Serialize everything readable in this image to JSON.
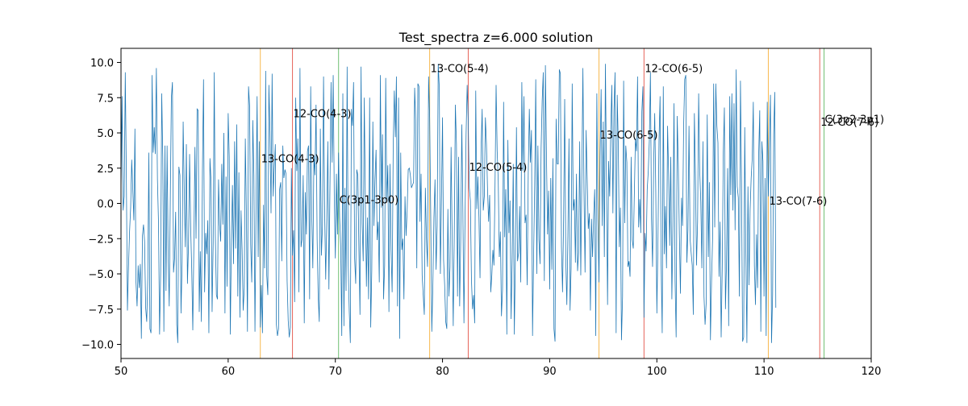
{
  "chart_data": {
    "type": "line",
    "title": "Test_spectra z=6.000 solution",
    "xlabel": "",
    "ylabel": "",
    "xlim": [
      50,
      120
    ],
    "ylim": [
      -11,
      11
    ],
    "x_ticks": [
      50,
      60,
      70,
      80,
      90,
      100,
      110,
      120
    ],
    "x_tick_labels": [
      "50",
      "60",
      "70",
      "80",
      "90",
      "100",
      "110",
      "120"
    ],
    "y_ticks": [
      -10,
      -7.5,
      -5,
      -2.5,
      0,
      2.5,
      5,
      7.5,
      10
    ],
    "y_tick_labels": [
      "−10.0",
      "−7.5",
      "−5.0",
      "−2.5",
      "0.0",
      "2.5",
      "5.0",
      "7.5",
      "10.0"
    ],
    "grid": false,
    "series": [
      {
        "color": "#1f77b4",
        "description_note": "random noise spectrum, approx. 0.1 x-units sampling",
        "x_start": 50.0,
        "x_step": 0.1,
        "values": [
          0.8,
          7.6,
          -0.5,
          0.5,
          9.3,
          1.8,
          -7.6,
          -4.5,
          -2.0,
          -0.3,
          3.1,
          1.0,
          -1.2,
          5.3,
          -5.6,
          -7.3,
          -4.4,
          -6.0,
          -4.3,
          -9.6,
          -2.3,
          -1.5,
          -2.7,
          -7.4,
          -8.4,
          -5.3,
          3.6,
          -8.9,
          -9.2,
          9.1,
          3.6,
          5.4,
          3.5,
          9.6,
          1.7,
          -1.4,
          -9.3,
          -4.9,
          7.8,
          3.3,
          -9.1,
          4.1,
          -6.2,
          4.1,
          -3.7,
          -7.3,
          0.3,
          7.5,
          8.6,
          -4.9,
          -3.9,
          -0.6,
          -8.6,
          -9.9,
          2.6,
          2.0,
          -7.8,
          -4.2,
          5.8,
          1.0,
          -3.1,
          4.2,
          -5.7,
          -2.9,
          3.5,
          -1.7,
          -4.7,
          -9.0,
          -2.9,
          4.0,
          -2.5,
          6.7,
          6.6,
          -7.7,
          -3.4,
          -8.4,
          2.3,
          8.8,
          -6.3,
          -2.1,
          -3.6,
          -1.2,
          -9.2,
          3.2,
          1.6,
          -7.7,
          -2.8,
          9.3,
          -2.2,
          -6.5,
          -6.8,
          1.7,
          -1.5,
          -2.7,
          2.8,
          -1.5,
          5.0,
          -7.8,
          1.9,
          -5.9,
          6.4,
          3.3,
          -9.3,
          -2.7,
          1.3,
          -4.3,
          4.4,
          -3.2,
          5.6,
          -6.6,
          2.2,
          -8.1,
          -0.5,
          -3.3,
          -7.6,
          -6.0,
          4.6,
          -0.7,
          -9.1,
          8.3,
          6.9,
          -2.9,
          -5.6,
          5.9,
          2.0,
          -9.1,
          -0.3,
          7.6,
          -3.8,
          4.4,
          -8.8,
          -5.8,
          -9.2,
          -0.1,
          -4.6,
          9.4,
          -5.1,
          -6.5,
          8.4,
          5.1,
          -0.7,
          9.2,
          0.5,
          2.6,
          4.2,
          -8.6,
          -9.4,
          -8.9,
          1.0,
          1.5,
          -4.1,
          4.1,
          1.8,
          2.4,
          2.1,
          -5.5,
          -8.3,
          -9.5,
          -8.8,
          2.5,
          -3.7,
          -1.9,
          -7.0,
          7.5,
          2.3,
          4.6,
          -6.3,
          9.6,
          -3.1,
          -2.5,
          2.0,
          -8.5,
          0.8,
          -2.2,
          3.7,
          4.1,
          -6.8,
          8.3,
          -0.9,
          -4.6,
          3.4,
          2.0,
          7.0,
          -2.5,
          -6.6,
          -8.4,
          5.3,
          -3.7,
          -1.6,
          9.0,
          -0.6,
          -5.4,
          -1.1,
          4.4,
          -6.1,
          1.4,
          8.6,
          2.9,
          9.1,
          0.5,
          -3.9,
          2.1,
          -2.2,
          3.6,
          -1.0,
          -3.0,
          -9.4,
          7.8,
          -8.7,
          1.1,
          -6.2,
          9.7,
          -4.4,
          -7.7,
          -9.9,
          6.7,
          5.5,
          8.6,
          -3.9,
          -5.7,
          2.4,
          2.0,
          -3.3,
          -7.9,
          9.7,
          -1.4,
          -4.1,
          7.5,
          0.2,
          -5.9,
          -1.0,
          -6.8,
          7.5,
          -8.8,
          -4.7,
          5.8,
          -1.6,
          1.7,
          3.8,
          -2.6,
          -1.3,
          -5.6,
          9.1,
          -0.3,
          4.9,
          -6.8,
          -4.4,
          8.9,
          0.3,
          2.7,
          -7.7,
          2.8,
          -3.3,
          -6.3,
          4.1,
          8.0,
          4.7,
          9.0,
          -7.3,
          7.5,
          -9.6,
          3.6,
          -3.3,
          -2.5,
          -6.8,
          0.5,
          -2.3,
          -0.5,
          2.4,
          2.5,
          2.0,
          1.1,
          1.3,
          1.5,
          8.2,
          5.9,
          -4.6,
          8.5,
          8.3,
          -1.3,
          2.1,
          -5.1,
          -6.5,
          -7.9,
          1.1,
          -2.5,
          -4.5,
          9.0,
          6.1,
          -0.8,
          -9.1,
          -5.8,
          -1.0,
          1.7,
          -4.7,
          -1.6,
          9.9,
          8.2,
          -5.0,
          0.1,
          6.1,
          -4.0,
          -5.8,
          -8.4,
          -8.9,
          -0.4,
          -6.6,
          -4.5,
          4.0,
          -2.5,
          -8.7,
          -1.9,
          7.0,
          4.2,
          -6.6,
          3.3,
          -7.3,
          -2.5,
          5.6,
          -0.6,
          -8.5,
          -1.1,
          4.9,
          8.4,
          5.9,
          1.1,
          0.2,
          -5.4,
          -7.5,
          -6.5,
          -8.5,
          8.0,
          -0.4,
          1.9,
          -1.0,
          -5.3,
          3.9,
          6.7,
          -0.5,
          0.5,
          6.1,
          4.2,
          1.0,
          -1.3,
          0.6,
          -6.3,
          -5.1,
          -3.3,
          -4.4,
          1.3,
          8.4,
          3.7,
          1.6,
          -3.8,
          -2.0,
          -8.0,
          -6.1,
          7.2,
          -2.4,
          1.0,
          -9.3,
          4.5,
          -2.1,
          0.2,
          -8.2,
          -3.9,
          2.8,
          -9.3,
          -3.8,
          5.4,
          -4.1,
          -3.5,
          -0.2,
          -5.6,
          8.6,
          2.3,
          7.6,
          -1.4,
          -0.8,
          -5.8,
          2.2,
          6.7,
          2.9,
          5.2,
          -9.4,
          -3.7,
          1.3,
          8.8,
          -5.0,
          4.1,
          -2.6,
          -4.3,
          3.9,
          7.3,
          9.3,
          -5.5,
          9.8,
          3.4,
          -2.2,
          0.9,
          -6.1,
          1.8,
          -4.7,
          3.2,
          -8.9,
          -9.8,
          6.0,
          2.8,
          2.8,
          9.5,
          9.2,
          -3.1,
          -6.3,
          -1.1,
          7.4,
          -3.9,
          -7.2,
          -2.3,
          4.6,
          -7.6,
          -4.6,
          8.5,
          -0.5,
          0.3,
          -4.2,
          2.1,
          -4.8,
          -3.5,
          4.4,
          -5.1,
          2.0,
          9.6,
          0.9,
          -4.9,
          5.2,
          1.7,
          -1.8,
          -0.7,
          -7.6,
          -1.1,
          -3.8,
          -0.9,
          1.0,
          -9.4,
          7.8,
          -1.1,
          -5.6,
          3.3,
          8.1,
          -1.6,
          5.8,
          -3.8,
          9.9,
          1.7,
          -7.2,
          3.0,
          0.5,
          5.2,
          8.4,
          -0.7,
          6.6,
          9.3,
          -9.2,
          7.7,
          4.2,
          -3.1,
          -0.3,
          -9.7,
          -6.6,
          8.7,
          -1.4,
          4.1,
          2.9,
          -4.5,
          -4.1,
          -5.2,
          3.3,
          -2.6,
          -3.2,
          0.7,
          4.6,
          3.7,
          9.0,
          -1.7,
          0.3,
          -2.1,
          6.5,
          8.3,
          -8.1,
          -2.1,
          -3.4,
          1.0,
          2.3,
          4.5,
          9.3,
          -1.1,
          -4.5,
          2.7,
          6.4,
          0.8,
          -7.8,
          -2.8,
          4.4,
          7.6,
          -4.3,
          -9.2,
          8.3,
          -3.6,
          -0.2,
          -4.6,
          5.5,
          2.0,
          -3.0,
          3.3,
          -6.8,
          -1.6,
          7.1,
          -5.5,
          -9.5,
          6.2,
          2.7,
          -2.2,
          -6.4,
          0.4,
          -1.6,
          5.5,
          8.8,
          9.1,
          -4.2,
          -1.9,
          5.5,
          -2.5,
          -3.5,
          -4.4,
          -7.9,
          6.4,
          2.1,
          -4.4,
          -1.3,
          7.8,
          2.3,
          0.1,
          -4.6,
          4.4,
          -6.6,
          -8.6,
          -7.1,
          6.3,
          -3.8,
          1.5,
          -9.7,
          -5.6,
          -2.5,
          8.5,
          -1.7,
          8.5,
          5.5,
          4.3,
          -5.2,
          -1.3,
          -9.5,
          -4.6,
          3.6,
          6.8,
          -7.5,
          -4.2,
          2.5,
          -8.7,
          7.6,
          0.6,
          7.8,
          -0.5,
          7.1,
          -1.9,
          9.5,
          1.2,
          0.4,
          -6.6,
          8.7,
          1.5,
          -9.8,
          -9.5,
          5.4,
          -3.2,
          -9.9,
          1.2,
          -5.8,
          -0.5,
          1.8,
          3.2,
          7.2,
          -4.4,
          -7.2,
          -2.2,
          -6.0,
          3.4,
          6.6,
          -9.1,
          4.4,
          3.0,
          -6.6,
          1.8,
          -9.4,
          7.2,
          0.5,
          4.2,
          7.7,
          -9.9,
          -6.5,
          4.9,
          7.9,
          -7.4
        ]
      }
    ],
    "vlines": [
      {
        "x": 63.0,
        "color": "orange",
        "label": "13-CO(4-3)",
        "label_y": 3.2
      },
      {
        "x": 66.0,
        "color": "red",
        "label": "12-CO(4-3)",
        "label_y": 6.4
      },
      {
        "x": 70.3,
        "color": "green",
        "label": "C(3p1-3p0)",
        "label_y": 0.3
      },
      {
        "x": 78.8,
        "color": "orange",
        "label": "13-CO(5-4)",
        "label_y": 9.6
      },
      {
        "x": 82.4,
        "color": "red",
        "label": "12-CO(5-4)",
        "label_y": 2.6
      },
      {
        "x": 94.6,
        "color": "orange",
        "label": "13-CO(6-5)",
        "label_y": 4.9
      },
      {
        "x": 98.8,
        "color": "red",
        "label": "12-CO(6-5)",
        "label_y": 9.6
      },
      {
        "x": 110.4,
        "color": "orange",
        "label": "13-CO(7-6)",
        "label_y": 0.2
      },
      {
        "x": 115.2,
        "color": "red",
        "label": "12-CO(7-6)",
        "label_y": 5.8
      },
      {
        "x": 115.6,
        "color": "green",
        "label": "C(3p2-3p1)",
        "label_y": 6.0
      }
    ]
  }
}
